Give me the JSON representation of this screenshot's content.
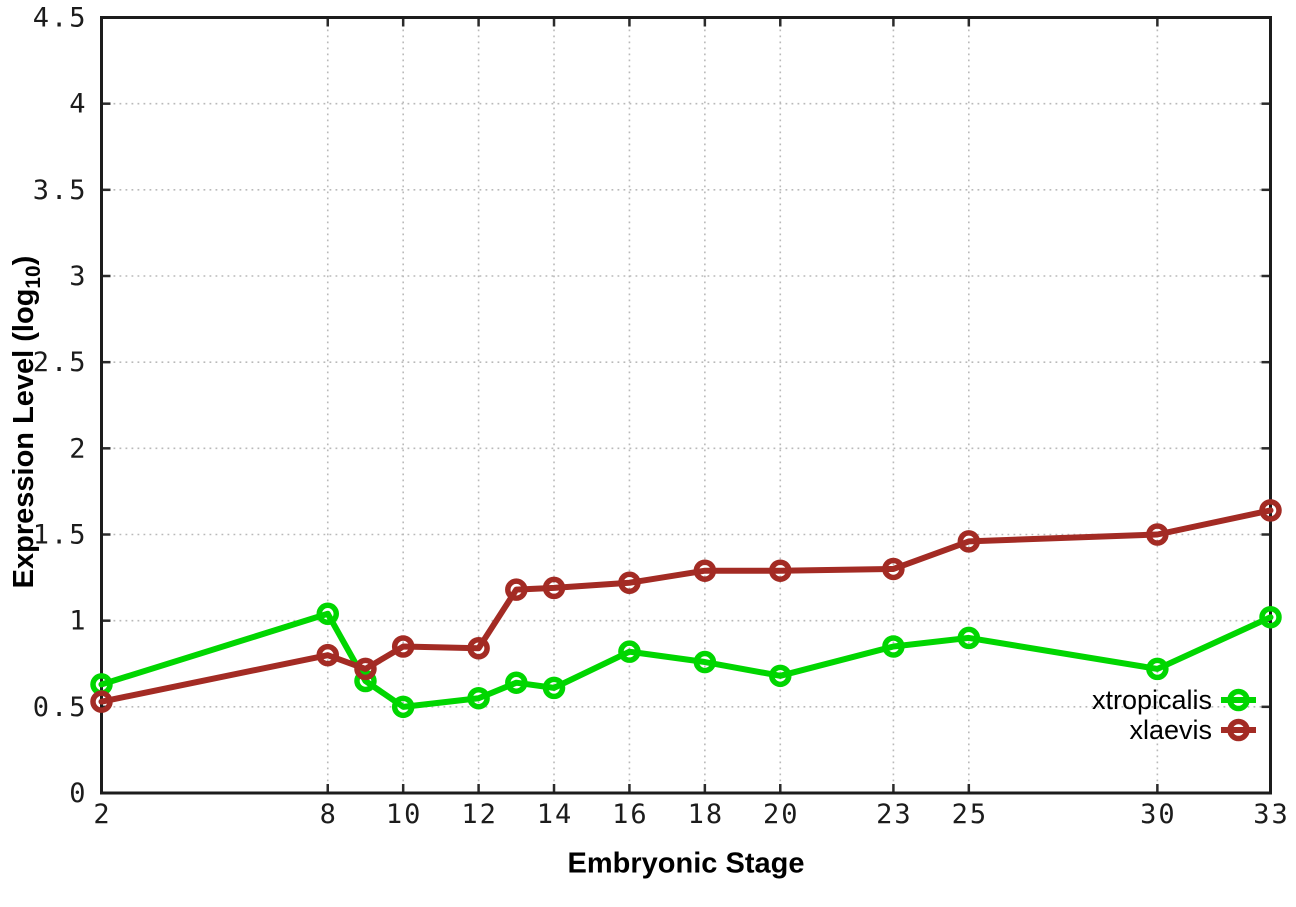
{
  "figure": {
    "background_color": "#ffffff",
    "border_color": "#1c1c1c",
    "grid_color": "#b9b9b9",
    "tick_label_color": "#1c1c1c"
  },
  "chart_data": {
    "type": "line",
    "title": "",
    "xlabel": "Embryonic Stage",
    "ylabel": "Expression Level (log10)",
    "ylabel_parts": {
      "prefix": "Expression Level (log",
      "sub": "10",
      "suffix": ")"
    },
    "xlim": [
      2,
      33
    ],
    "ylim": [
      0,
      4.5
    ],
    "xticks": [
      2,
      8,
      10,
      12,
      14,
      16,
      18,
      20,
      23,
      25,
      30,
      33
    ],
    "yticks": [
      0,
      0.5,
      1,
      1.5,
      2,
      2.5,
      3,
      3.5,
      4,
      4.5
    ],
    "grid": "dotted",
    "marker": "open-circle",
    "legend_position": "bottom-right-inside",
    "x": [
      2,
      8,
      9,
      10,
      12,
      13,
      14,
      16,
      18,
      20,
      23,
      25,
      30,
      33
    ],
    "series": [
      {
        "name": "xtropicalis",
        "color": "#00d600",
        "values": [
          0.63,
          1.04,
          0.65,
          0.5,
          0.55,
          0.64,
          0.61,
          0.82,
          0.76,
          0.68,
          0.85,
          0.9,
          0.72,
          1.02
        ]
      },
      {
        "name": "xlaevis",
        "color": "#a32b24",
        "values": [
          0.53,
          0.8,
          0.72,
          0.85,
          0.84,
          1.18,
          1.19,
          1.22,
          1.29,
          1.29,
          1.3,
          1.46,
          1.5,
          1.64
        ]
      }
    ]
  }
}
